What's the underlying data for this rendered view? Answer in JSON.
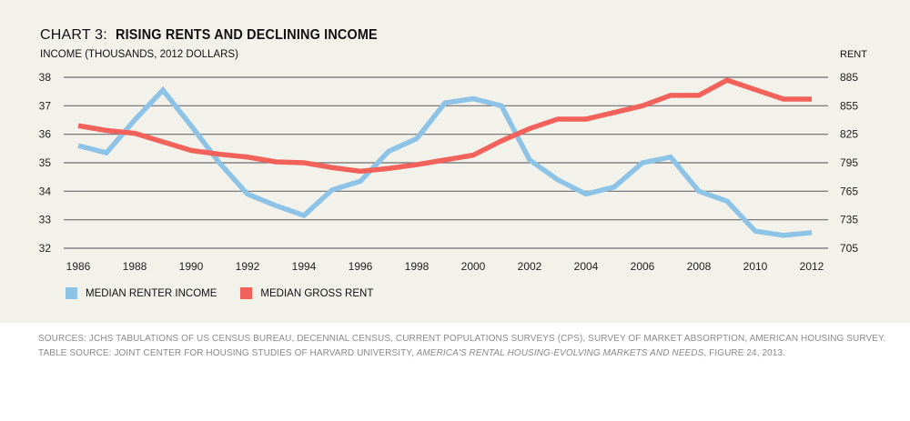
{
  "header": {
    "title_prefix": "CHART 3:",
    "title_main": "RISING RENTS AND DECLINING INCOME",
    "left_axis_label": "INCOME (THOUSANDS, 2012 DOLLARS)",
    "right_axis_label": "RENT"
  },
  "legend": [
    {
      "label": "MEDIAN RENTER INCOME",
      "color": "#8dc3e6"
    },
    {
      "label": "MEDIAN GROSS RENT",
      "color": "#f2615a"
    }
  ],
  "sources": {
    "line1": "SOURCES: JCHS TABULATIONS OF US CENSUS BUREAU, DECENNIAL CENSUS, CURRENT POPULATIONS SURVEYS (CPS), SURVEY OF MARKET ABSORPTION, AMERICAN HOUSING SURVEY.",
    "line2_prefix": "TABLE SOURCE: JOINT CENTER FOR HOUSING STUDIES OF HARVARD UNIVERSITY, ",
    "line2_italic": "AMERICA'S RENTAL HOUSING-EVOLVING MARKETS AND NEEDS",
    "line2_suffix": ", FIGURE 24, 2013."
  },
  "chart_data": {
    "type": "line",
    "title": "CHART 3: RISING RENTS AND DECLINING INCOME",
    "xlabel": "",
    "ylabel": "INCOME (THOUSANDS, 2012 DOLLARS)",
    "y2label": "RENT",
    "x": [
      1986,
      1987,
      1988,
      1989,
      1990,
      1991,
      1992,
      1993,
      1994,
      1995,
      1996,
      1997,
      1998,
      1999,
      2000,
      2001,
      2002,
      2003,
      2004,
      2005,
      2006,
      2007,
      2008,
      2009,
      2010,
      2011,
      2012
    ],
    "x_ticks": [
      "1986",
      "1988",
      "1990",
      "1992",
      "1994",
      "1996",
      "1998",
      "2000",
      "2002",
      "2004",
      "2006",
      "2008",
      "2010",
      "2012"
    ],
    "ylim": [
      32,
      38
    ],
    "y_ticks": [
      "32",
      "33",
      "34",
      "35",
      "36",
      "37",
      "38"
    ],
    "y2lim": [
      705,
      885
    ],
    "y2_ticks": [
      "705",
      "735",
      "765",
      "795",
      "825",
      "855",
      "885"
    ],
    "grid": true,
    "legend_position": "bottom-left",
    "series": [
      {
        "name": "MEDIAN RENTER INCOME",
        "axis": "left",
        "color": "#8dc3e6",
        "values": [
          35.6,
          35.35,
          36.5,
          37.55,
          36.3,
          35.0,
          33.9,
          33.5,
          33.15,
          34.05,
          34.35,
          35.4,
          35.85,
          37.1,
          37.25,
          37.0,
          35.1,
          34.4,
          33.9,
          34.15,
          35.0,
          35.2,
          34.0,
          33.65,
          32.6,
          32.45,
          32.55
        ]
      },
      {
        "name": "MEDIAN GROSS RENT",
        "axis": "right",
        "color": "#f2615a",
        "values": [
          834,
          829,
          826,
          817,
          808,
          804,
          801,
          796,
          795,
          790,
          786,
          789,
          793,
          798,
          803,
          818,
          831,
          841,
          841,
          848,
          855,
          866,
          866,
          882,
          872,
          862,
          862
        ]
      }
    ]
  }
}
